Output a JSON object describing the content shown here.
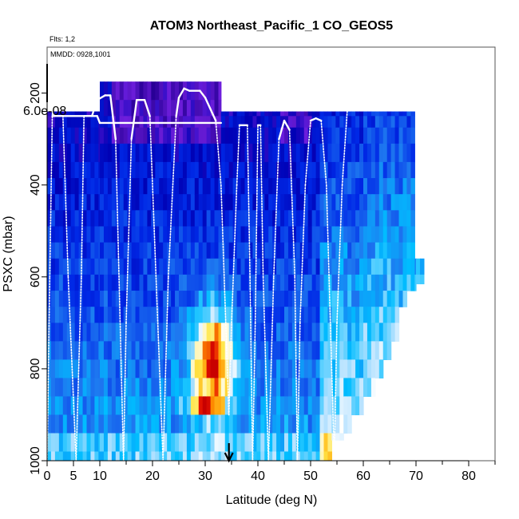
{
  "chart_data": {
    "type": "heatmap",
    "title": "ATOM3 Northeast_Pacific_1 CO_GEOS5",
    "flights_label": "Flts: 1,2",
    "dates_label": "MMDD: 0928,1001",
    "colorbar_tick_label": "6.0e-08",
    "xlabel": "Latitude (deg N)",
    "ylabel": "PSXC (mbar)",
    "xlim": [
      0,
      85
    ],
    "ylim": [
      1000,
      100
    ],
    "x_ticks": [
      0,
      5,
      10,
      20,
      30,
      40,
      50,
      60,
      70,
      80
    ],
    "y_ticks": [
      200,
      400,
      600,
      800,
      1000
    ],
    "marker_latitude": 34.5,
    "pressure_levels": [
      175,
      215,
      250,
      275,
      310,
      350,
      385,
      420,
      455,
      490,
      525,
      560,
      595,
      630,
      665,
      700,
      740,
      780,
      820,
      860,
      900,
      940,
      980
    ],
    "columns": [
      {
        "lat0": 0,
        "lat1": 10,
        "ptop": 240,
        "pbot": 1000
      },
      {
        "lat0": 10,
        "lat1": 33,
        "ptop": 175,
        "pbot": 1000
      },
      {
        "lat0": 33,
        "lat1": 54,
        "ptop": 240,
        "pbot": 1000
      },
      {
        "lat0": 54,
        "lat1": 70,
        "ptop": 240,
        "pbot": 955
      },
      {
        "lat0": 70,
        "lat1": 71.5,
        "ptop": 560,
        "pbot": 615
      }
    ],
    "right_boundary": [
      [
        240,
        70
      ],
      [
        560,
        70
      ],
      [
        560,
        71.5
      ],
      [
        615,
        71.5
      ],
      [
        640,
        68
      ],
      [
        680,
        67
      ],
      [
        720,
        65.5
      ],
      [
        760,
        64
      ],
      [
        800,
        62
      ],
      [
        840,
        60
      ],
      [
        880,
        58
      ],
      [
        920,
        56
      ],
      [
        960,
        55
      ],
      [
        1000,
        54
      ]
    ],
    "co_hotspot": {
      "lat0": 24,
      "lat1": 34,
      "pmin": 640,
      "pmax": 920,
      "center_lat": 31.5,
      "center_p": 780
    },
    "flight_track": [
      [
        0,
        1000
      ],
      [
        0.5,
        600
      ],
      [
        1,
        240
      ],
      [
        1.5,
        250
      ],
      [
        3,
        250
      ],
      [
        4,
        600
      ],
      [
        5.5,
        1000
      ],
      [
        6.5,
        600
      ],
      [
        7,
        250
      ],
      [
        8.5,
        250
      ],
      [
        9.5,
        215
      ],
      [
        11,
        205
      ],
      [
        12,
        205
      ],
      [
        13,
        300
      ],
      [
        14.5,
        1000
      ],
      [
        15,
        700
      ],
      [
        16,
        300
      ],
      [
        17,
        215
      ],
      [
        18.5,
        215
      ],
      [
        19.5,
        250
      ],
      [
        21,
        700
      ],
      [
        22,
        1000
      ],
      [
        23,
        600
      ],
      [
        24.5,
        250
      ],
      [
        25,
        210
      ],
      [
        26,
        190
      ],
      [
        27,
        195
      ],
      [
        29,
        195
      ],
      [
        30,
        210
      ],
      [
        32,
        260
      ],
      [
        33,
        400
      ],
      [
        34.5,
        900
      ],
      [
        35,
        700
      ],
      [
        36,
        400
      ],
      [
        36.5,
        270
      ],
      [
        38,
        270
      ],
      [
        38.5,
        600
      ],
      [
        39,
        1000
      ],
      [
        39.5,
        700
      ],
      [
        40,
        270
      ],
      [
        40.5,
        270
      ],
      [
        41,
        600
      ],
      [
        42,
        1000
      ],
      [
        43,
        600
      ],
      [
        44,
        300
      ],
      [
        45,
        260
      ],
      [
        46,
        280
      ],
      [
        47,
        600
      ],
      [
        47.5,
        1000
      ],
      [
        48,
        700
      ],
      [
        49,
        400
      ],
      [
        50,
        260
      ],
      [
        51,
        255
      ],
      [
        52,
        260
      ],
      [
        53,
        400
      ],
      [
        54.5,
        1000
      ],
      [
        55,
        700
      ],
      [
        56,
        400
      ],
      [
        57,
        230
      ],
      [
        71,
        230
      ]
    ],
    "flight_track_low": [
      [
        1,
        250
      ],
      [
        9.5,
        250
      ],
      [
        10,
        265
      ],
      [
        33,
        265
      ]
    ]
  }
}
